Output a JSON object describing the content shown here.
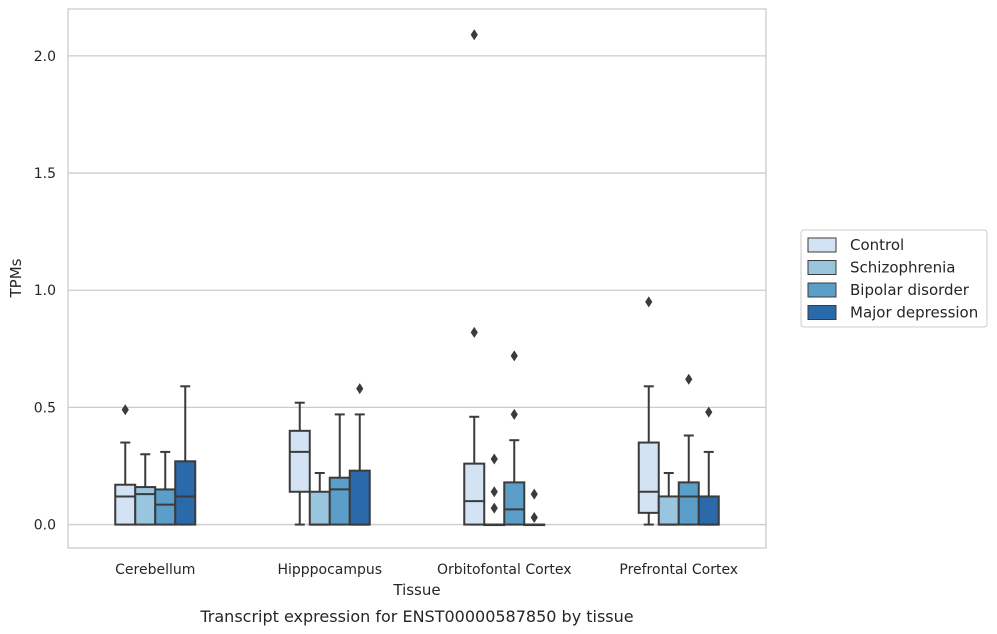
{
  "chart_data": {
    "type": "box",
    "caption": "Transcript expression for ENST00000587850 by tissue",
    "xlabel": "Tissue",
    "ylabel": "TPMs",
    "ylim": [
      -0.1,
      2.2
    ],
    "yticks": [
      0.0,
      0.5,
      1.0,
      1.5,
      2.0
    ],
    "ytick_labels": [
      "0.0",
      "0.5",
      "1.0",
      "1.5",
      "2.0"
    ],
    "grid": "horizontal",
    "legend_position": "right",
    "categories": [
      "Cerebellum",
      "Hipppocampus",
      "Orbitofontal Cortex",
      "Prefrontal Cortex"
    ],
    "series": [
      {
        "name": "Control",
        "color": "#d4e3f3",
        "boxes": [
          {
            "q1": 0.0,
            "median": 0.12,
            "q3": 0.17,
            "whisker_low": 0.0,
            "whisker_high": 0.35,
            "outliers": [
              0.49
            ]
          },
          {
            "q1": 0.14,
            "median": 0.31,
            "q3": 0.4,
            "whisker_low": 0.0,
            "whisker_high": 0.52,
            "outliers": []
          },
          {
            "q1": 0.0,
            "median": 0.1,
            "q3": 0.26,
            "whisker_low": 0.0,
            "whisker_high": 0.46,
            "outliers": [
              0.82,
              2.09
            ]
          },
          {
            "q1": 0.05,
            "median": 0.14,
            "q3": 0.35,
            "whisker_low": 0.0,
            "whisker_high": 0.59,
            "outliers": [
              0.95
            ]
          }
        ]
      },
      {
        "name": "Schizophrenia",
        "color": "#9ac5df",
        "boxes": [
          {
            "q1": 0.0,
            "median": 0.13,
            "q3": 0.16,
            "whisker_low": 0.0,
            "whisker_high": 0.3,
            "outliers": []
          },
          {
            "q1": 0.0,
            "median": 0.0,
            "q3": 0.14,
            "whisker_low": 0.0,
            "whisker_high": 0.22,
            "outliers": []
          },
          {
            "q1": 0.0,
            "median": 0.0,
            "q3": 0.0,
            "whisker_low": 0.0,
            "whisker_high": 0.0,
            "outliers": [
              0.07,
              0.14,
              0.28
            ]
          },
          {
            "q1": 0.0,
            "median": 0.0,
            "q3": 0.12,
            "whisker_low": 0.0,
            "whisker_high": 0.22,
            "outliers": []
          }
        ]
      },
      {
        "name": "Bipolar disorder",
        "color": "#5b9ec9",
        "boxes": [
          {
            "q1": 0.0,
            "median": 0.085,
            "q3": 0.15,
            "whisker_low": 0.0,
            "whisker_high": 0.31,
            "outliers": []
          },
          {
            "q1": 0.0,
            "median": 0.15,
            "q3": 0.2,
            "whisker_low": 0.0,
            "whisker_high": 0.47,
            "outliers": []
          },
          {
            "q1": 0.0,
            "median": 0.065,
            "q3": 0.18,
            "whisker_low": 0.0,
            "whisker_high": 0.36,
            "outliers": [
              0.47,
              0.72
            ]
          },
          {
            "q1": 0.0,
            "median": 0.12,
            "q3": 0.18,
            "whisker_low": 0.0,
            "whisker_high": 0.38,
            "outliers": [
              0.62
            ]
          }
        ]
      },
      {
        "name": "Major depression",
        "color": "#2a6aab",
        "boxes": [
          {
            "q1": 0.0,
            "median": 0.12,
            "q3": 0.27,
            "whisker_low": 0.0,
            "whisker_high": 0.59,
            "outliers": []
          },
          {
            "q1": 0.0,
            "median": 0.0,
            "q3": 0.23,
            "whisker_low": 0.0,
            "whisker_high": 0.47,
            "outliers": [
              0.58
            ]
          },
          {
            "q1": 0.0,
            "median": 0.0,
            "q3": 0.0,
            "whisker_low": 0.0,
            "whisker_high": 0.0,
            "outliers": [
              0.03,
              0.13
            ]
          },
          {
            "q1": 0.0,
            "median": 0.0,
            "q3": 0.12,
            "whisker_low": 0.0,
            "whisker_high": 0.31,
            "outliers": [
              0.48
            ]
          }
        ]
      }
    ]
  }
}
